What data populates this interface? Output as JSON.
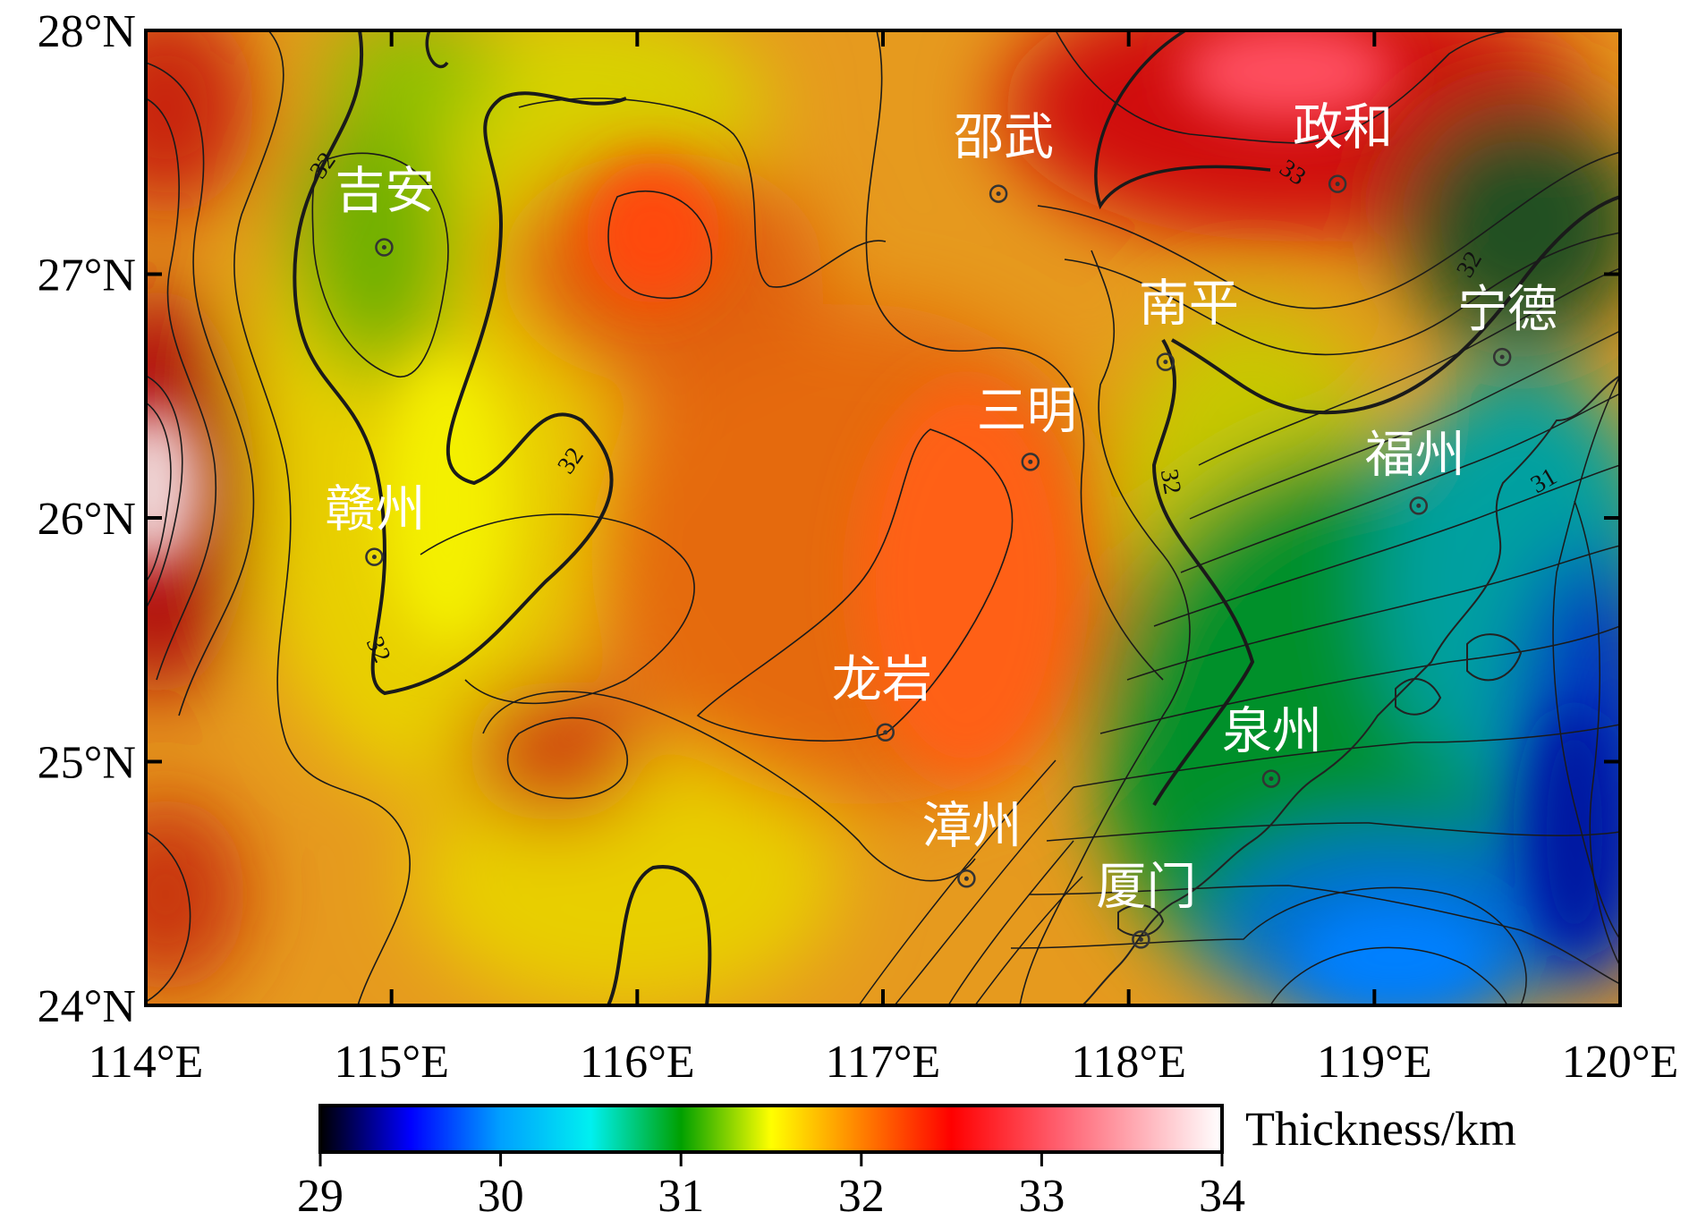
{
  "map": {
    "lon_range": [
      114,
      120
    ],
    "lat_range": [
      24,
      28
    ],
    "lon_ticks": [
      "114°E",
      "115°E",
      "116°E",
      "117°E",
      "118°E",
      "119°E",
      "120°E"
    ],
    "lat_ticks": [
      "24°N",
      "25°N",
      "26°N",
      "27°N",
      "28°N"
    ],
    "cities": [
      {
        "name": "吉安",
        "lon": 114.97,
        "lat": 27.11
      },
      {
        "name": "赣州",
        "lon": 114.93,
        "lat": 25.84
      },
      {
        "name": "邵武",
        "lon": 117.47,
        "lat": 27.33
      },
      {
        "name": "政和",
        "lon": 118.85,
        "lat": 27.37
      },
      {
        "name": "南平",
        "lon": 118.15,
        "lat": 26.64
      },
      {
        "name": "宁德",
        "lon": 119.52,
        "lat": 26.66
      },
      {
        "name": "三明",
        "lon": 117.6,
        "lat": 26.23
      },
      {
        "name": "福州",
        "lon": 119.18,
        "lat": 26.05
      },
      {
        "name": "龙岩",
        "lon": 117.01,
        "lat": 25.12
      },
      {
        "name": "泉州",
        "lon": 118.58,
        "lat": 24.93
      },
      {
        "name": "漳州",
        "lon": 117.34,
        "lat": 24.52
      },
      {
        "name": "厦门",
        "lon": 118.05,
        "lat": 24.27
      }
    ],
    "contour_labels": [
      "32",
      "32",
      "33",
      "32",
      "32",
      "32",
      "31"
    ],
    "colors": {
      "c29": "#000000",
      "c29_5": "#0000ff",
      "c30": "#00a0ff",
      "c30_5": "#00f0f0",
      "c31": "#00a000",
      "c31_5": "#a0e000",
      "c32": "#ffff00",
      "c32_5": "#ff8000",
      "c33": "#ff0000",
      "c33_5": "#ff6070",
      "c34": "#ffffff"
    }
  },
  "colorbar": {
    "ticks": [
      "29",
      "30",
      "31",
      "32",
      "33",
      "34"
    ],
    "title": "Thickness/km"
  }
}
